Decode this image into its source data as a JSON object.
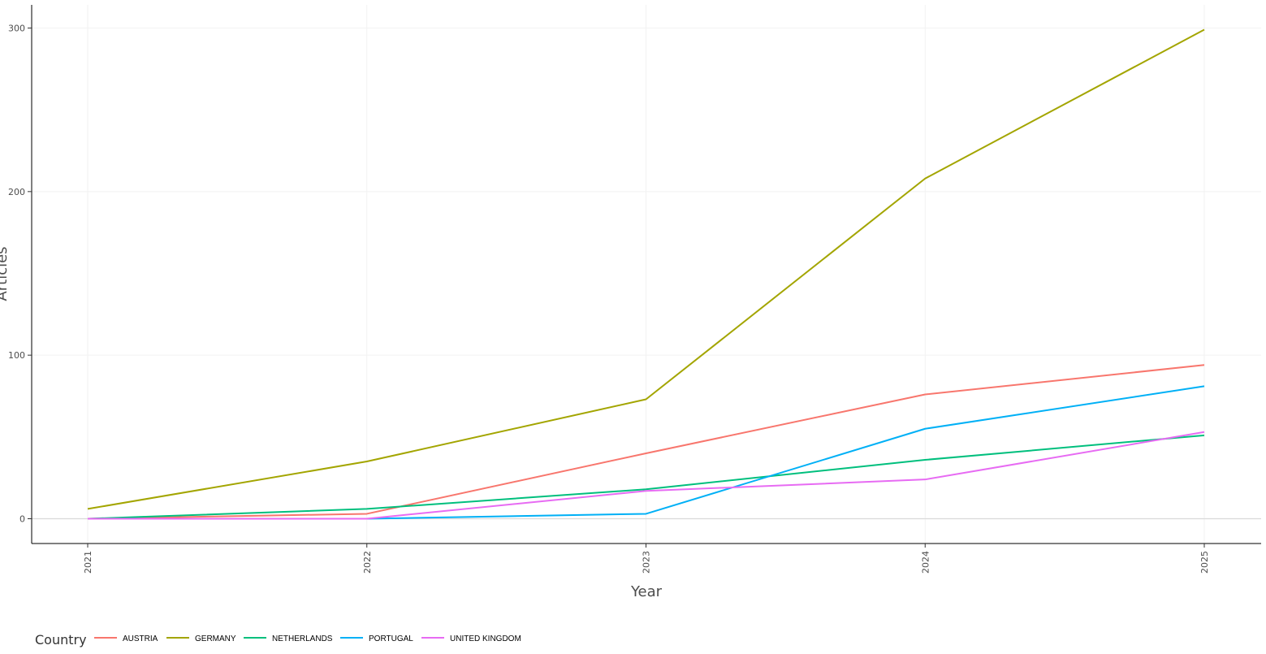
{
  "chart_data": {
    "type": "line",
    "title": "",
    "xlabel": "Year",
    "ylabel": "Articles",
    "x": [
      2021,
      2022,
      2023,
      2024,
      2025
    ],
    "x_tick_labels": [
      "2021",
      "2022",
      "2023",
      "2024",
      "2025"
    ],
    "y_ticks": [
      0,
      100,
      200,
      300
    ],
    "y_tick_labels": [
      "0",
      "100",
      "200",
      "300"
    ],
    "ylim": [
      -15,
      314
    ],
    "grid": true,
    "legend_title": "Country",
    "legend_position": "bottom-left",
    "series": [
      {
        "name": "AUSTRIA",
        "color": "#F8766D",
        "values": [
          0,
          3,
          40,
          76,
          94
        ]
      },
      {
        "name": "GERMANY",
        "color": "#A3A500",
        "values": [
          6,
          35,
          73,
          208,
          299
        ]
      },
      {
        "name": "NETHERLANDS",
        "color": "#00BF7D",
        "values": [
          0,
          6,
          18,
          36,
          51
        ]
      },
      {
        "name": "PORTUGAL",
        "color": "#00B0F6",
        "values": [
          0,
          0,
          3,
          55,
          81
        ]
      },
      {
        "name": "UNITED KINGDOM",
        "color": "#E76BF3",
        "values": [
          0,
          0,
          17,
          24,
          53
        ]
      }
    ]
  }
}
